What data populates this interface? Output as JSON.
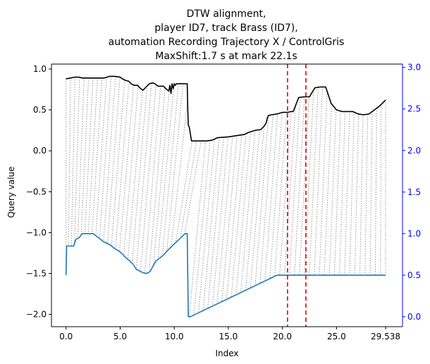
{
  "chart_data": {
    "type": "line",
    "title_lines": [
      "DTW alignment,",
      "player ID7, track Brass (ID7),",
      "automation Recording Trajectory X / ControlGris",
      "MaxShift:1.7 s at mark 22.1s"
    ],
    "xlabel": "Index",
    "ylabel": "Query value",
    "ylabel_right": "",
    "xlim": [
      -1.35,
      31.1
    ],
    "ylim": [
      -2.15,
      1.06
    ],
    "ylim_right": [
      -0.12,
      3.04
    ],
    "x_ticks": [
      0.0,
      5.0,
      10.0,
      15.0,
      20.0,
      25.0,
      29.538
    ],
    "x_tick_labels": [
      "0.0",
      "5.0",
      "10.0",
      "15.0",
      "20.0",
      "25.0",
      "29.538"
    ],
    "y_ticks": [
      -2.0,
      -1.5,
      -1.0,
      -0.5,
      0.0,
      0.5,
      1.0
    ],
    "y_tick_labels": [
      "−2.0",
      "−1.5",
      "−1.0",
      "−0.5",
      "0.0",
      "0.5",
      "1.0"
    ],
    "y_ticks_right": [
      0.0,
      0.5,
      1.0,
      1.5,
      2.0,
      2.5,
      3.0
    ],
    "y_tick_labels_right": [
      "0.0",
      "0.5",
      "1.0",
      "1.5",
      "2.0",
      "2.5",
      "3.0"
    ],
    "grid": false,
    "legend": "none",
    "series": [
      {
        "role": "query",
        "axis": "left",
        "color": "#000000",
        "x": [
          0.0,
          0.4,
          0.8,
          1.2,
          1.5,
          2.0,
          3.0,
          3.5,
          3.8,
          4.0,
          4.5,
          5.0,
          5.2,
          5.5,
          5.8,
          6.0,
          6.3,
          6.6,
          6.9,
          7.1,
          7.4,
          7.7,
          8.0,
          8.2,
          8.5,
          9.0,
          9.3,
          9.5,
          9.6,
          9.7,
          9.8,
          9.9,
          10.0,
          10.1,
          10.2,
          10.5,
          11.0,
          11.2,
          11.25,
          11.3,
          11.4,
          11.5,
          11.6,
          12.0,
          13.0,
          13.5,
          14.0,
          15.0,
          16.0,
          16.5,
          16.8,
          17.0,
          17.5,
          18.0,
          18.3,
          18.5,
          18.6,
          18.7,
          19.0,
          19.5,
          20.0,
          20.5,
          20.8,
          21.0,
          21.5,
          22.0,
          22.3,
          22.5,
          23.0,
          23.5,
          23.8,
          24.0,
          24.2,
          24.5,
          25.0,
          25.5,
          26.0,
          26.5,
          27.0,
          27.5,
          28.0,
          28.5,
          29.0,
          29.538
        ],
        "y": [
          0.88,
          0.89,
          0.9,
          0.9,
          0.89,
          0.89,
          0.89,
          0.89,
          0.9,
          0.91,
          0.91,
          0.9,
          0.88,
          0.86,
          0.85,
          0.82,
          0.8,
          0.8,
          0.76,
          0.74,
          0.78,
          0.82,
          0.83,
          0.82,
          0.79,
          0.79,
          0.75,
          0.73,
          0.8,
          0.7,
          0.82,
          0.76,
          0.82,
          0.8,
          0.82,
          0.82,
          0.82,
          0.82,
          0.5,
          0.32,
          0.28,
          0.2,
          0.12,
          0.12,
          0.12,
          0.13,
          0.16,
          0.17,
          0.19,
          0.2,
          0.22,
          0.23,
          0.25,
          0.26,
          0.3,
          0.34,
          0.4,
          0.43,
          0.44,
          0.45,
          0.47,
          0.47,
          0.48,
          0.48,
          0.65,
          0.66,
          0.66,
          0.66,
          0.77,
          0.78,
          0.78,
          0.78,
          0.7,
          0.58,
          0.5,
          0.48,
          0.48,
          0.48,
          0.45,
          0.44,
          0.45,
          0.5,
          0.55,
          0.62
        ]
      },
      {
        "role": "reference",
        "axis": "right",
        "color": "#1f77b4",
        "x": [
          0.0,
          0.05,
          0.1,
          0.7,
          0.9,
          1.2,
          1.5,
          2.0,
          2.5,
          3.0,
          3.5,
          4.0,
          4.5,
          5.0,
          5.3,
          5.6,
          5.9,
          6.2,
          6.5,
          6.8,
          7.1,
          7.4,
          7.6,
          7.8,
          8.0,
          8.3,
          8.6,
          9.0,
          9.4,
          9.8,
          10.2,
          10.6,
          11.0,
          11.1,
          11.2,
          11.3,
          11.5,
          19.5,
          20.0,
          25.0,
          29.538
        ],
        "y": [
          0.5,
          0.85,
          0.85,
          0.85,
          0.93,
          0.95,
          1.0,
          1.0,
          1.0,
          0.95,
          0.9,
          0.87,
          0.82,
          0.78,
          0.74,
          0.7,
          0.67,
          0.63,
          0.57,
          0.55,
          0.53,
          0.52,
          0.53,
          0.55,
          0.6,
          0.67,
          0.7,
          0.74,
          0.8,
          0.85,
          0.9,
          0.95,
          1.0,
          1.0,
          1.0,
          0.0,
          0.0,
          0.5,
          0.5,
          0.5,
          0.5
        ]
      }
    ],
    "alignment_lines": {
      "color": "#7f7f7f",
      "style": "dotted",
      "count": 72
    },
    "vertical_markers": [
      {
        "x": 20.47,
        "color": "#e00000",
        "style": "dashed"
      },
      {
        "x": 22.17,
        "color": "#e00000",
        "style": "dashed"
      }
    ]
  }
}
